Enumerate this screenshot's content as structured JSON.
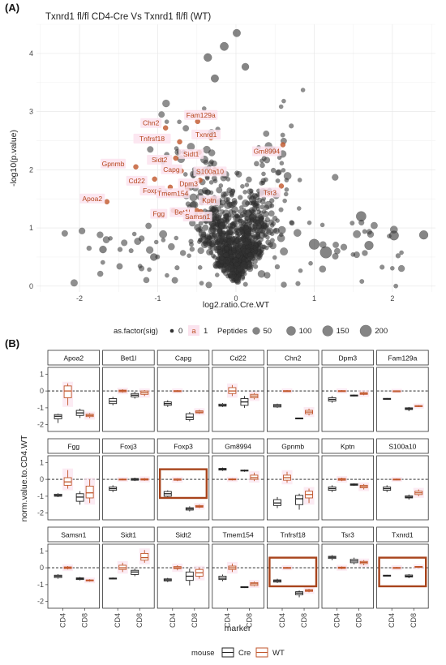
{
  "figure": {
    "panel_a_label": "(A)",
    "panel_b_label": "(B)"
  },
  "colors": {
    "sig": "#c0562b",
    "nonsig": "#333333",
    "cre": "#222222",
    "wt": "#c0562b",
    "label_bg": "#fbe3ee",
    "highlight": "#a8441c"
  },
  "chart_data": [
    {
      "type": "scatter",
      "title": "Txnrd1 fl/fl CD4-Cre Vs Txnrd1 fl/fl (WT)",
      "xlabel": "log2.ratio.Cre.WT",
      "ylabel": "-log10(p.value)",
      "xlim": [
        -2.55,
        2.55
      ],
      "ylim": [
        -0.1,
        4.5
      ],
      "xticks": [
        -2,
        -1,
        0,
        1,
        2
      ],
      "yticks": [
        0,
        1,
        2,
        3,
        4
      ],
      "grid": true,
      "legend": {
        "placement": "bottom",
        "sig_title": "as.factor(sig)",
        "sig_levels": [
          "0",
          "1"
        ],
        "sig_key_glyph": "a",
        "size_title": "Peptides",
        "size_levels": [
          50,
          100,
          150,
          200
        ]
      },
      "labeled_points": [
        {
          "label": "Chn2",
          "x": -0.9,
          "y": 2.72
        },
        {
          "label": "Fam129a",
          "x": -0.49,
          "y": 2.83
        },
        {
          "label": "Tnfrsf18",
          "x": -0.72,
          "y": 2.48
        },
        {
          "label": "Txnrd1",
          "x": -0.32,
          "y": 2.55
        },
        {
          "label": "Gm8994",
          "x": 0.6,
          "y": 2.43
        },
        {
          "label": "Sidt1",
          "x": -0.47,
          "y": 2.3
        },
        {
          "label": "Sidt2",
          "x": -0.77,
          "y": 2.2
        },
        {
          "label": "Gpnmb",
          "x": -1.28,
          "y": 2.05
        },
        {
          "label": "Capg",
          "x": -0.7,
          "y": 1.98
        },
        {
          "label": "S100a10",
          "x": -0.27,
          "y": 2.0
        },
        {
          "label": "Dpm3",
          "x": -0.46,
          "y": 1.82
        },
        {
          "label": "Cd22",
          "x": -1.04,
          "y": 1.84
        },
        {
          "label": "Foxp3",
          "x": -0.84,
          "y": 1.7
        },
        {
          "label": "Tmem154",
          "x": -0.62,
          "y": 1.68
        },
        {
          "label": "Tsr3",
          "x": 0.58,
          "y": 1.72
        },
        {
          "label": "Apoa2",
          "x": -1.65,
          "y": 1.45
        },
        {
          "label": "Fgg",
          "x": -0.8,
          "y": 1.3
        },
        {
          "label": "Bet1l",
          "x": -0.5,
          "y": 1.3
        },
        {
          "label": "Kptn",
          "x": -0.3,
          "y": 1.5
        },
        {
          "label": "Samsn1",
          "x": -0.45,
          "y": 1.28
        }
      ],
      "highlight_points": [
        {
          "x": 0.01,
          "y": 4.35,
          "peptides": 60
        },
        {
          "x": -0.15,
          "y": 4.12,
          "peptides": 80
        },
        {
          "x": -0.36,
          "y": 3.93,
          "peptides": 70
        },
        {
          "x": 0.12,
          "y": 3.77,
          "peptides": 50
        },
        {
          "x": -0.27,
          "y": 3.57,
          "peptides": 60
        },
        {
          "x": 1.6,
          "y": 1.2,
          "peptides": 130
        },
        {
          "x": 2.02,
          "y": 0.87,
          "peptides": 110
        },
        {
          "x": 2.4,
          "y": 0.88,
          "peptides": 90
        },
        {
          "x": 1.0,
          "y": 0.72,
          "peptides": 150
        },
        {
          "x": 1.15,
          "y": 0.58,
          "peptides": 200
        },
        {
          "x": 1.7,
          "y": 0.7,
          "peptides": 90
        },
        {
          "x": -1.7,
          "y": 0.63,
          "peptides": 50
        },
        {
          "x": -1.05,
          "y": 0.5,
          "peptides": 50
        }
      ]
    },
    {
      "type": "box",
      "xlabel": "marker",
      "ylabel": "norm.value.to.CD4.WT",
      "categories": [
        "CD4",
        "CD8"
      ],
      "yticks": [
        -2,
        -1,
        0,
        1
      ],
      "reference_line": 0,
      "legend": {
        "placement": "bottom",
        "title": "mouse",
        "items": [
          "Cre",
          "WT"
        ]
      },
      "highlighted_facets": [
        "Foxp3",
        "Tnfrsf18",
        "Txnrd1"
      ],
      "facets": [
        {
          "name": "Apoa2",
          "CD4": {
            "Cre": [
              -1.9,
              -1.65,
              -1.5,
              -1.4,
              -1.35
            ],
            "WT": [
              -0.85,
              -0.4,
              0.0,
              0.3,
              0.45
            ]
          },
          "CD8": {
            "Cre": [
              -1.6,
              -1.45,
              -1.3,
              -1.15,
              -1.05
            ],
            "WT": [
              -1.6,
              -1.52,
              -1.45,
              -1.38,
              -1.32
            ]
          }
        },
        {
          "name": "Bet1l",
          "CD4": {
            "Cre": [
              -0.85,
              -0.75,
              -0.62,
              -0.45,
              -0.35
            ],
            "WT": [
              -0.1,
              -0.05,
              0.0,
              0.05,
              0.1
            ]
          },
          "CD8": {
            "Cre": [
              -0.45,
              -0.35,
              -0.25,
              -0.15,
              -0.05
            ],
            "WT": [
              -0.3,
              -0.2,
              -0.1,
              0.0,
              0.05
            ]
          }
        },
        {
          "name": "Capg",
          "CD4": {
            "Cre": [
              -0.95,
              -0.85,
              -0.75,
              -0.65,
              -0.55
            ],
            "WT": [
              -0.05,
              -0.02,
              0.0,
              0.02,
              0.05
            ]
          },
          "CD8": {
            "Cre": [
              -1.8,
              -1.7,
              -1.55,
              -1.35,
              -1.25
            ],
            "WT": [
              -1.35,
              -1.3,
              -1.25,
              -1.18,
              -1.12
            ]
          }
        },
        {
          "name": "Cd22",
          "CD4": {
            "Cre": [
              -0.95,
              -0.9,
              -0.85,
              -0.78,
              -0.72
            ],
            "WT": [
              -0.3,
              -0.15,
              0.0,
              0.2,
              0.35
            ]
          },
          "CD8": {
            "Cre": [
              -1.0,
              -0.85,
              -0.65,
              -0.45,
              -0.3
            ],
            "WT": [
              -0.5,
              -0.4,
              -0.3,
              -0.2,
              -0.12
            ]
          }
        },
        {
          "name": "Chn2",
          "CD4": {
            "Cre": [
              -1.0,
              -0.95,
              -0.88,
              -0.8,
              -0.75
            ],
            "WT": [
              -0.05,
              -0.02,
              0.0,
              0.02,
              0.05
            ]
          },
          "CD8": {
            "Cre": [
              -1.68,
              -1.65,
              -1.62,
              -1.6,
              -1.58
            ],
            "WT": [
              -1.45,
              -1.35,
              -1.25,
              -1.15,
              -1.05
            ]
          }
        },
        {
          "name": "Dpm3",
          "CD4": {
            "Cre": [
              -0.7,
              -0.6,
              -0.5,
              -0.4,
              -0.3
            ],
            "WT": [
              -0.05,
              -0.02,
              0.0,
              0.02,
              0.05
            ]
          },
          "CD8": {
            "Cre": [
              -0.32,
              -0.3,
              -0.27,
              -0.24,
              -0.21
            ],
            "WT": [
              -0.25,
              -0.2,
              -0.15,
              -0.1,
              -0.05
            ]
          }
        },
        {
          "name": "Fam129a",
          "CD4": {
            "Cre": [
              -0.5,
              -0.48,
              -0.46,
              -0.44,
              -0.42
            ],
            "WT": [
              -0.03,
              -0.01,
              0.0,
              0.01,
              0.03
            ]
          },
          "CD8": {
            "Cre": [
              -1.2,
              -1.1,
              -1.05,
              -1.0,
              -0.95
            ],
            "WT": [
              -0.95,
              -0.92,
              -0.9,
              -0.87,
              -0.84
            ]
          }
        },
        {
          "name": "Fgg",
          "CD4": {
            "Cre": [
              -1.05,
              -1.0,
              -0.95,
              -0.88,
              -0.82
            ],
            "WT": [
              -0.55,
              -0.35,
              -0.15,
              0.1,
              0.55
            ]
          },
          "CD8": {
            "Cre": [
              -1.5,
              -1.3,
              -1.05,
              -0.85,
              -0.7
            ],
            "WT": [
              -1.4,
              -1.1,
              -0.8,
              -0.4,
              0.0
            ]
          }
        },
        {
          "name": "Foxj3",
          "CD4": {
            "Cre": [
              -0.75,
              -0.65,
              -0.55,
              -0.45,
              -0.35
            ],
            "WT": [
              -0.05,
              -0.02,
              0.0,
              0.02,
              0.05
            ]
          },
          "CD8": {
            "Cre": [
              -0.1,
              -0.05,
              0.0,
              0.05,
              0.1
            ],
            "WT": [
              -0.08,
              -0.04,
              0.0,
              0.04,
              0.08
            ]
          }
        },
        {
          "name": "Foxp3",
          "CD4": {
            "Cre": [
              -1.15,
              -1.0,
              -0.85,
              -0.72,
              -0.65
            ],
            "WT": [
              -0.1,
              -0.05,
              0.0,
              0.03,
              0.06
            ]
          },
          "CD8": {
            "Cre": [
              -1.9,
              -1.82,
              -1.75,
              -1.68,
              -1.6
            ],
            "WT": [
              -1.7,
              -1.65,
              -1.6,
              -1.55,
              -1.5
            ]
          }
        },
        {
          "name": "Gm8994",
          "CD4": {
            "Cre": [
              0.5,
              0.55,
              0.6,
              0.65,
              0.7
            ],
            "WT": [
              -0.06,
              -0.03,
              0.0,
              0.03,
              0.06
            ]
          },
          "CD8": {
            "Cre": [
              0.45,
              0.5,
              0.52,
              0.55,
              0.58
            ],
            "WT": [
              -0.1,
              0.0,
              0.1,
              0.25,
              0.4
            ]
          }
        },
        {
          "name": "Gpnmb",
          "CD4": {
            "Cre": [
              -1.7,
              -1.55,
              -1.4,
              -1.2,
              -1.05
            ],
            "WT": [
              -0.2,
              -0.05,
              0.1,
              0.25,
              0.45
            ]
          },
          "CD8": {
            "Cre": [
              -1.8,
              -1.5,
              -1.15,
              -0.95,
              -0.85
            ],
            "WT": [
              -1.4,
              -1.1,
              -0.9,
              -0.7,
              -0.55
            ]
          }
        },
        {
          "name": "Kptn",
          "CD4": {
            "Cre": [
              -0.75,
              -0.65,
              -0.55,
              -0.45,
              -0.35
            ],
            "WT": [
              -0.1,
              -0.05,
              0.0,
              0.05,
              0.1
            ]
          },
          "CD8": {
            "Cre": [
              -0.38,
              -0.35,
              -0.3,
              -0.27,
              -0.24
            ],
            "WT": [
              -0.6,
              -0.5,
              -0.42,
              -0.35,
              -0.28
            ]
          }
        },
        {
          "name": "S100a10",
          "CD4": {
            "Cre": [
              -0.75,
              -0.65,
              -0.55,
              -0.45,
              -0.35
            ],
            "WT": [
              -0.05,
              -0.02,
              0.0,
              0.02,
              0.05
            ]
          },
          "CD8": {
            "Cre": [
              -1.2,
              -1.1,
              -1.05,
              -0.98,
              -0.9
            ],
            "WT": [
              -1.0,
              -0.9,
              -0.8,
              -0.7,
              -0.6
            ]
          }
        },
        {
          "name": "Samsn1",
          "CD4": {
            "Cre": [
              -0.65,
              -0.58,
              -0.5,
              -0.44,
              -0.38
            ],
            "WT": [
              -0.1,
              -0.05,
              0.0,
              0.05,
              0.1
            ]
          },
          "CD8": {
            "Cre": [
              -0.75,
              -0.7,
              -0.65,
              -0.6,
              -0.55
            ],
            "WT": [
              -0.82,
              -0.78,
              -0.75,
              -0.72,
              -0.68
            ]
          }
        },
        {
          "name": "Sidt1",
          "CD4": {
            "Cre": [
              -0.68,
              -0.66,
              -0.63,
              -0.61,
              -0.58
            ],
            "WT": [
              -0.25,
              -0.1,
              0.0,
              0.15,
              0.3
            ]
          },
          "CD8": {
            "Cre": [
              -0.5,
              -0.4,
              -0.25,
              -0.15,
              -0.05
            ],
            "WT": [
              0.3,
              0.45,
              0.6,
              0.85,
              1.05
            ]
          }
        },
        {
          "name": "Sidt2",
          "CD4": {
            "Cre": [
              -0.85,
              -0.78,
              -0.72,
              -0.66,
              -0.6
            ],
            "WT": [
              -0.15,
              -0.05,
              0.0,
              0.07,
              0.15
            ]
          },
          "CD8": {
            "Cre": [
              -1.05,
              -0.75,
              -0.5,
              -0.25,
              -0.05
            ],
            "WT": [
              -0.65,
              -0.5,
              -0.3,
              -0.1,
              0.02
            ]
          }
        },
        {
          "name": "Tmem154",
          "CD4": {
            "Cre": [
              -0.8,
              -0.7,
              -0.62,
              -0.5,
              -0.4
            ],
            "WT": [
              -0.25,
              -0.1,
              0.0,
              0.1,
              0.25
            ]
          },
          "CD8": {
            "Cre": [
              -1.2,
              -1.18,
              -1.15,
              -1.12,
              -1.1
            ],
            "WT": [
              -1.1,
              -1.05,
              -0.95,
              -0.88,
              -0.82
            ]
          }
        },
        {
          "name": "Tnfrsf18",
          "CD4": {
            "Cre": [
              -0.9,
              -0.85,
              -0.78,
              -0.72,
              -0.65
            ],
            "WT": [
              -0.05,
              -0.02,
              0.0,
              0.02,
              0.05
            ]
          },
          "CD8": {
            "Cre": [
              -1.75,
              -1.6,
              -1.5,
              -1.42,
              -1.35
            ],
            "WT": [
              -1.45,
              -1.4,
              -1.35,
              -1.3,
              -1.25
            ]
          }
        },
        {
          "name": "Tsr3",
          "CD4": {
            "Cre": [
              0.45,
              0.55,
              0.62,
              0.68,
              0.75
            ],
            "WT": [
              -0.08,
              -0.04,
              0.0,
              0.04,
              0.08
            ]
          },
          "CD8": {
            "Cre": [
              0.2,
              0.3,
              0.4,
              0.5,
              0.6
            ],
            "WT": [
              0.15,
              0.25,
              0.32,
              0.38,
              0.45
            ]
          }
        },
        {
          "name": "Txnrd1",
          "CD4": {
            "Cre": [
              -0.5,
              -0.48,
              -0.46,
              -0.44,
              -0.42
            ],
            "WT": [
              -0.05,
              -0.02,
              0.0,
              0.02,
              0.05
            ]
          },
          "CD8": {
            "Cre": [
              -0.62,
              -0.55,
              -0.5,
              -0.43,
              -0.38
            ],
            "WT": [
              0.0,
              0.03,
              0.05,
              0.08,
              0.1
            ]
          }
        }
      ]
    }
  ]
}
